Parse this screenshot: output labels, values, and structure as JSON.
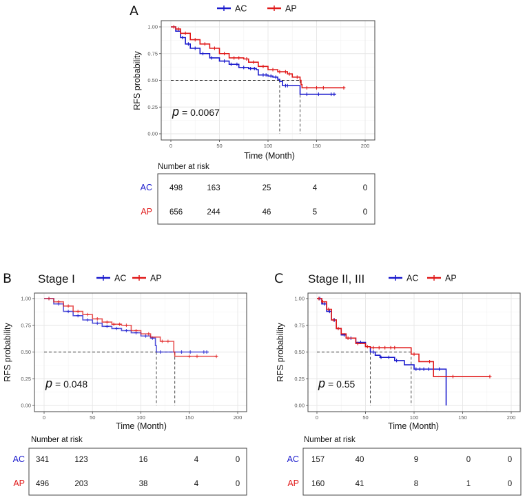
{
  "chart_data": [
    {
      "panel_label": "A",
      "type": "line",
      "title": "",
      "xlabel": "Time (Month)",
      "ylabel": "RFS probability",
      "xlim": [
        0,
        200
      ],
      "ylim": [
        0,
        1
      ],
      "xticks": [
        "0",
        "50",
        "100",
        "150",
        "200"
      ],
      "yticks": [
        "0.00",
        "0.25",
        "0.50",
        "0.75",
        "1.00"
      ],
      "grid": true,
      "legend_position": "top",
      "p_label": "p",
      "p_value": "= 0.0067",
      "median_survival": [
        112,
        133
      ],
      "series": [
        {
          "name": "AC",
          "color": "#1a1acd",
          "steps": [
            [
              0,
              1
            ],
            [
              5,
              0.96
            ],
            [
              10,
              0.9
            ],
            [
              15,
              0.84
            ],
            [
              20,
              0.8
            ],
            [
              30,
              0.75
            ],
            [
              40,
              0.71
            ],
            [
              50,
              0.68
            ],
            [
              60,
              0.65
            ],
            [
              70,
              0.62
            ],
            [
              80,
              0.61
            ],
            [
              88,
              0.6
            ],
            [
              90,
              0.55
            ],
            [
              100,
              0.54
            ],
            [
              105,
              0.53
            ],
            [
              110,
              0.51
            ],
            [
              112,
              0.49
            ],
            [
              115,
              0.45
            ],
            [
              133,
              0.37
            ],
            [
              170,
              0.37
            ]
          ],
          "censor": [
            12,
            18,
            25,
            33,
            42,
            55,
            62,
            68,
            75,
            82,
            86,
            95,
            98,
            103,
            108,
            118,
            120,
            140,
            152,
            165,
            168
          ]
        },
        {
          "name": "AP",
          "color": "#e01a1a",
          "steps": [
            [
              0,
              1
            ],
            [
              5,
              0.98
            ],
            [
              10,
              0.94
            ],
            [
              20,
              0.88
            ],
            [
              30,
              0.84
            ],
            [
              40,
              0.8
            ],
            [
              50,
              0.75
            ],
            [
              60,
              0.71
            ],
            [
              75,
              0.7
            ],
            [
              80,
              0.67
            ],
            [
              90,
              0.63
            ],
            [
              100,
              0.6
            ],
            [
              110,
              0.58
            ],
            [
              120,
              0.56
            ],
            [
              125,
              0.53
            ],
            [
              133,
              0.5
            ],
            [
              134,
              0.46
            ],
            [
              135,
              0.43
            ],
            [
              179,
              0.43
            ]
          ],
          "censor": [
            3,
            8,
            15,
            25,
            35,
            45,
            55,
            65,
            70,
            78,
            85,
            95,
            105,
            112,
            118,
            122,
            130,
            140,
            150,
            157,
            178
          ]
        }
      ],
      "risk_table": {
        "title": "Number at risk",
        "times": [
          0,
          50,
          100,
          150,
          200
        ],
        "rows": [
          {
            "label": "AC",
            "color": "#1a1acd",
            "values": [
              498,
              163,
              25,
              4,
              0
            ]
          },
          {
            "label": "AP",
            "color": "#e01a1a",
            "values": [
              656,
              244,
              46,
              5,
              0
            ]
          }
        ]
      }
    },
    {
      "panel_label": "B",
      "type": "line",
      "title": "Stage I",
      "xlabel": "Time (Month)",
      "ylabel": "RFS probability",
      "xlim": [
        0,
        200
      ],
      "ylim": [
        0,
        1
      ],
      "xticks": [
        "0",
        "50",
        "100",
        "150",
        "200"
      ],
      "yticks": [
        "0.00",
        "0.25",
        "0.50",
        "0.75",
        "1.00"
      ],
      "grid": true,
      "legend_position": "top",
      "p_label": "p",
      "p_value": "= 0.048",
      "median_survival": [
        116,
        135
      ],
      "series": [
        {
          "name": "AC",
          "color": "#1a1acd",
          "steps": [
            [
              0,
              1
            ],
            [
              10,
              0.95
            ],
            [
              20,
              0.88
            ],
            [
              30,
              0.84
            ],
            [
              40,
              0.8
            ],
            [
              50,
              0.77
            ],
            [
              60,
              0.74
            ],
            [
              70,
              0.72
            ],
            [
              80,
              0.7
            ],
            [
              90,
              0.68
            ],
            [
              100,
              0.65
            ],
            [
              110,
              0.63
            ],
            [
              115,
              0.56
            ],
            [
              116,
              0.5
            ],
            [
              170,
              0.5
            ]
          ],
          "censor": [
            5,
            15,
            25,
            35,
            45,
            55,
            65,
            75,
            85,
            95,
            105,
            112,
            120,
            142,
            151,
            165,
            168
          ]
        },
        {
          "name": "AP",
          "color": "#e01a1a",
          "steps": [
            [
              0,
              1
            ],
            [
              10,
              0.97
            ],
            [
              20,
              0.93
            ],
            [
              30,
              0.88
            ],
            [
              40,
              0.85
            ],
            [
              50,
              0.81
            ],
            [
              60,
              0.78
            ],
            [
              70,
              0.76
            ],
            [
              80,
              0.75
            ],
            [
              90,
              0.7
            ],
            [
              100,
              0.67
            ],
            [
              110,
              0.64
            ],
            [
              120,
              0.6
            ],
            [
              130,
              0.6
            ],
            [
              134,
              0.5
            ],
            [
              135,
              0.46
            ],
            [
              179,
              0.46
            ]
          ],
          "censor": [
            5,
            15,
            25,
            35,
            45,
            55,
            65,
            72,
            78,
            85,
            95,
            108,
            122,
            128,
            150,
            158,
            178
          ]
        }
      ],
      "risk_table": {
        "title": "Number at risk",
        "times": [
          0,
          50,
          100,
          150,
          200
        ],
        "rows": [
          {
            "label": "AC",
            "color": "#1a1acd",
            "values": [
              341,
              123,
              16,
              4,
              0
            ]
          },
          {
            "label": "AP",
            "color": "#e01a1a",
            "values": [
              496,
              203,
              38,
              4,
              0
            ]
          }
        ]
      }
    },
    {
      "panel_label": "C",
      "type": "line",
      "title": "Stage II, III",
      "xlabel": "Time (Month)",
      "ylabel": "RFS probability",
      "xlim": [
        0,
        200
      ],
      "ylim": [
        0,
        1
      ],
      "xticks": [
        "0",
        "50",
        "100",
        "150",
        "200"
      ],
      "yticks": [
        "0.00",
        "0.25",
        "0.50",
        "0.75",
        "1.00"
      ],
      "grid": true,
      "legend_position": "top",
      "p_label": "p",
      "p_value": "= 0.55",
      "median_survival": [
        55,
        97
      ],
      "series": [
        {
          "name": "AC",
          "color": "#1a1acd",
          "steps": [
            [
              0,
              1
            ],
            [
              5,
              0.95
            ],
            [
              10,
              0.88
            ],
            [
              15,
              0.8
            ],
            [
              20,
              0.72
            ],
            [
              25,
              0.66
            ],
            [
              30,
              0.63
            ],
            [
              40,
              0.59
            ],
            [
              50,
              0.55
            ],
            [
              55,
              0.5
            ],
            [
              60,
              0.47
            ],
            [
              65,
              0.45
            ],
            [
              80,
              0.42
            ],
            [
              90,
              0.38
            ],
            [
              100,
              0.34
            ],
            [
              133,
              0.34
            ],
            [
              133,
              0
            ]
          ],
          "censor": [
            3,
            8,
            13,
            18,
            28,
            35,
            45,
            58,
            66,
            74,
            82,
            102,
            106,
            110,
            115,
            126
          ]
        },
        {
          "name": "AP",
          "color": "#e01a1a",
          "steps": [
            [
              0,
              1
            ],
            [
              5,
              0.97
            ],
            [
              10,
              0.9
            ],
            [
              15,
              0.8
            ],
            [
              20,
              0.72
            ],
            [
              25,
              0.67
            ],
            [
              30,
              0.63
            ],
            [
              40,
              0.58
            ],
            [
              50,
              0.55
            ],
            [
              55,
              0.54
            ],
            [
              97,
              0.54
            ],
            [
              97,
              0.48
            ],
            [
              105,
              0.41
            ],
            [
              119,
              0.41
            ],
            [
              120,
              0.27
            ],
            [
              178,
              0.27
            ]
          ],
          "censor": [
            2,
            6,
            12,
            17,
            22,
            32,
            42,
            52,
            58,
            64,
            70,
            76,
            80,
            100,
            116,
            140,
            178
          ]
        }
      ],
      "risk_table": {
        "title": "Number at risk",
        "times": [
          0,
          50,
          100,
          150,
          200
        ],
        "rows": [
          {
            "label": "AC",
            "color": "#1a1acd",
            "values": [
              157,
              40,
              9,
              0,
              0
            ]
          },
          {
            "label": "AP",
            "color": "#e01a1a",
            "values": [
              160,
              41,
              8,
              1,
              0
            ]
          }
        ]
      }
    }
  ]
}
